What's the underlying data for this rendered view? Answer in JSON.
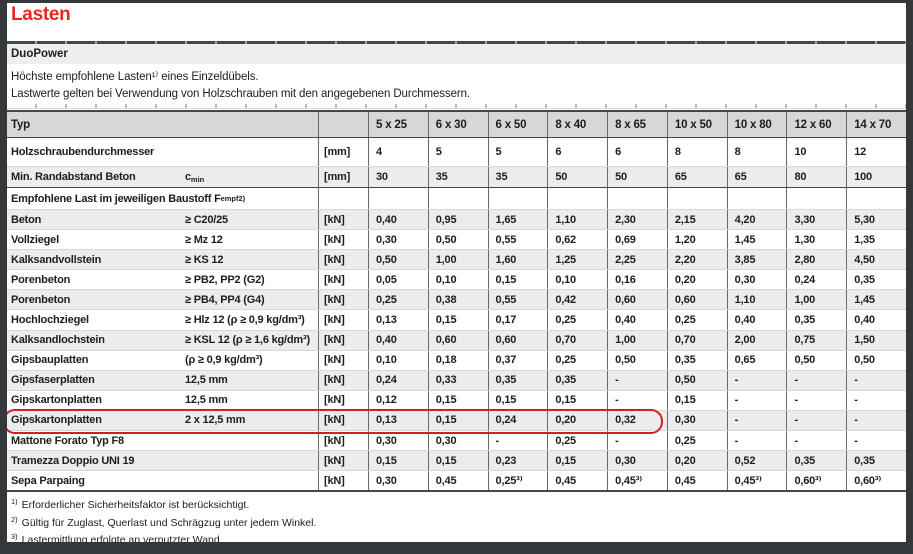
{
  "title": "Lasten",
  "section": "DuoPower",
  "intro": [
    "Höchste empfohlene Lasten¹⁾ eines Einzeldübels.",
    "Lastwerte gelten bei Verwendung von Holzschrauben mit den angegebenen Durchmessern."
  ],
  "table": {
    "typ_label": "Typ",
    "sizes": [
      "5 x 25",
      "6 x 30",
      "6 x 50",
      "8 x 40",
      "8 x 65",
      "10 x 50",
      "10 x 80",
      "12 x 60",
      "14 x 70"
    ],
    "rows": [
      {
        "type": "param",
        "label": "Holzschraubendurchmesser",
        "spec": "",
        "unit": "[mm]",
        "values": [
          "4",
          "5",
          "5",
          "6",
          "6",
          "8",
          "8",
          "10",
          "12"
        ]
      },
      {
        "type": "param",
        "label": "Min. Randabstand Beton",
        "spec": "c",
        "spec_sub": "min",
        "unit": "[mm]",
        "values": [
          "30",
          "35",
          "35",
          "50",
          "50",
          "65",
          "65",
          "80",
          "100"
        ]
      },
      {
        "type": "group",
        "label": "Empfohlene Last im jeweiligen Baustoff F",
        "label_sub": "empf",
        "label_sup": "2)"
      },
      {
        "type": "material",
        "label": "Beton",
        "spec": "≥ C20/25",
        "unit": "[kN]",
        "values": [
          "0,40",
          "0,95",
          "1,65",
          "1,10",
          "2,30",
          "2,15",
          "4,20",
          "3,30",
          "5,30"
        ]
      },
      {
        "type": "material",
        "label": "Vollziegel",
        "spec": "≥ Mz 12",
        "unit": "[kN]",
        "values": [
          "0,30",
          "0,50",
          "0,55",
          "0,62",
          "0,69",
          "1,20",
          "1,45",
          "1,30",
          "1,35"
        ]
      },
      {
        "type": "material",
        "label": "Kalksandvollstein",
        "spec": "≥ KS 12",
        "unit": "[kN]",
        "values": [
          "0,50",
          "1,00",
          "1,60",
          "1,25",
          "2,25",
          "2,20",
          "3,85",
          "2,80",
          "4,50"
        ]
      },
      {
        "type": "material",
        "label": "Porenbeton",
        "spec": "≥ PB2, PP2 (G2)",
        "unit": "[kN]",
        "values": [
          "0,05",
          "0,10",
          "0,15",
          "0,10",
          "0,16",
          "0,20",
          "0,30",
          "0,24",
          "0,35"
        ]
      },
      {
        "type": "material",
        "label": "Porenbeton",
        "spec": "≥ PB4, PP4 (G4)",
        "unit": "[kN]",
        "values": [
          "0,25",
          "0,38",
          "0,55",
          "0,42",
          "0,60",
          "0,60",
          "1,10",
          "1,00",
          "1,45"
        ]
      },
      {
        "type": "material",
        "label": "Hochlochziegel",
        "spec": "≥ Hlz 12 (ρ ≥ 0,9 kg/dm³)",
        "unit": "[kN]",
        "values": [
          "0,13",
          "0,15",
          "0,17",
          "0,25",
          "0,40",
          "0,25",
          "0,40",
          "0,35",
          "0,40"
        ]
      },
      {
        "type": "material",
        "label": "Kalksandlochstein",
        "spec": "≥ KSL 12 (ρ ≥ 1,6 kg/dm³)",
        "unit": "[kN]",
        "values": [
          "0,40",
          "0,60",
          "0,60",
          "0,70",
          "1,00",
          "0,70",
          "2,00",
          "0,75",
          "1,50"
        ]
      },
      {
        "type": "material",
        "label": "Gipsbauplatten",
        "spec": "(ρ ≥ 0,9 kg/dm³)",
        "unit": "[kN]",
        "values": [
          "0,10",
          "0,18",
          "0,37",
          "0,25",
          "0,50",
          "0,35",
          "0,65",
          "0,50",
          "0,50"
        ]
      },
      {
        "type": "material",
        "label": "Gipsfaserplatten",
        "spec": "12,5 mm",
        "unit": "[kN]",
        "values": [
          "0,24",
          "0,33",
          "0,35",
          "0,35",
          "-",
          "0,50",
          "-",
          "-",
          "-"
        ]
      },
      {
        "type": "material",
        "label": "Gipskartonplatten",
        "spec": "12,5 mm",
        "unit": "[kN]",
        "values": [
          "0,12",
          "0,15",
          "0,15",
          "0,15",
          "-",
          "0,15",
          "-",
          "-",
          "-"
        ]
      },
      {
        "type": "material",
        "label": "Gipskartonplatten",
        "spec": "2 x 12,5 mm",
        "unit": "[kN]",
        "values": [
          "0,13",
          "0,15",
          "0,24",
          "0,20",
          "0,32",
          "0,30",
          "-",
          "-",
          "-"
        ],
        "highlighted": true
      },
      {
        "type": "material",
        "label": "Mattone Forato Typ F8",
        "spec": "",
        "unit": "[kN]",
        "values": [
          "0,30",
          "0,30",
          "-",
          "0,25",
          "-",
          "0,25",
          "-",
          "-",
          "-"
        ]
      },
      {
        "type": "material",
        "label": "Tramezza Doppio UNI 19",
        "spec": "",
        "unit": "[kN]",
        "values": [
          "0,15",
          "0,15",
          "0,23",
          "0,15",
          "0,30",
          "0,20",
          "0,52",
          "0,35",
          "0,35"
        ]
      },
      {
        "type": "material",
        "label": "Sepa Parpaing",
        "spec": "",
        "unit": "[kN]",
        "values": [
          "0,30",
          "0,45",
          "0,25³⁾",
          "0,45",
          "0,45³⁾",
          "0,45",
          "0,45³⁾",
          "0,60³⁾",
          "0,60³⁾"
        ]
      }
    ]
  },
  "footnotes": [
    {
      "marker": "1)",
      "text": "Erforderlicher Sicherheitsfaktor ist berücksichtigt."
    },
    {
      "marker": "2)",
      "text": "Gültig für Zuglast, Querlast und Schrägzug unter jedem Winkel."
    },
    {
      "marker": "3)",
      "text": "Lastermittlung erfolgte an verputzter Wand."
    }
  ],
  "colors": {
    "accent_red": "#e8281e",
    "annotation_red": "#cb2128",
    "frame_dark": "#35383b",
    "header_gray": "#d7d7d7",
    "alt_row_gray": "#ececec",
    "band_gray": "#eeeeee"
  }
}
